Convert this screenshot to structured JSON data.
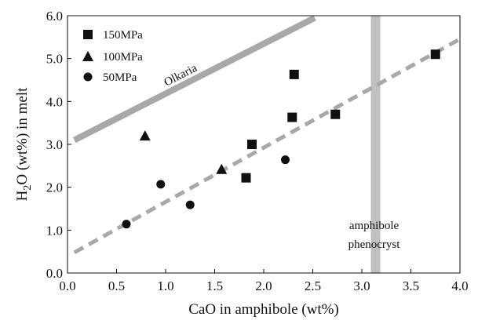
{
  "chart_data": {
    "type": "scatter",
    "xlabel": "CaO in amphibole (wt%)",
    "ylabel_parts": {
      "main": "H",
      "sub": "2",
      "rest": "O (wt%) in melt"
    },
    "xlim": [
      0.0,
      4.0
    ],
    "ylim": [
      0.0,
      6.0
    ],
    "x_ticks": [
      "0.0",
      "0.5",
      "1.0",
      "1.5",
      "2.0",
      "2.5",
      "3.0",
      "3.5",
      "4.0"
    ],
    "y_ticks": [
      "0.0",
      "1.0",
      "2.0",
      "3.0",
      "4.0",
      "5.0",
      "6.0"
    ],
    "legend_position": "top-left",
    "series": [
      {
        "name": "150MPa",
        "marker": "square",
        "color": "#111111",
        "points": [
          [
            1.82,
            2.22
          ],
          [
            1.88,
            3.0
          ],
          [
            2.29,
            3.63
          ],
          [
            2.31,
            4.63
          ],
          [
            2.73,
            3.7
          ],
          [
            3.75,
            5.1
          ]
        ]
      },
      {
        "name": "100MPa",
        "marker": "triangle",
        "color": "#111111",
        "points": [
          [
            0.79,
            3.2
          ],
          [
            1.57,
            2.42
          ]
        ]
      },
      {
        "name": "50MPa",
        "marker": "circle",
        "color": "#111111",
        "points": [
          [
            0.6,
            1.14
          ],
          [
            0.95,
            2.07
          ],
          [
            1.25,
            1.59
          ],
          [
            2.22,
            2.64
          ]
        ]
      }
    ],
    "lines": [
      {
        "label": "Olkaria",
        "style": "solid",
        "color": "#a8a8a8",
        "from": [
          0.07,
          3.1
        ],
        "to": [
          2.52,
          5.95
        ]
      },
      {
        "label": "",
        "style": "dashed",
        "color": "#a8a8a8",
        "from": [
          0.07,
          0.48
        ],
        "to": [
          3.98,
          5.43
        ]
      }
    ],
    "vband": {
      "x": 3.14,
      "color": "#c0c0c0",
      "label_lines": [
        "amphibole",
        "phenocryst"
      ]
    }
  }
}
